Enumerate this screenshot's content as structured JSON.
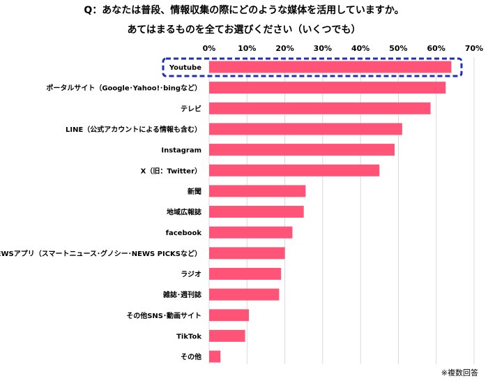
{
  "chart_data": {
    "type": "bar",
    "orientation": "horizontal",
    "title": "Q：あなたは普段、情報収集の際にどのような媒体を活用していますか。",
    "subtitle": "あてはまるものを全てお選びください（いくつでも）",
    "categories": [
      "Youtube",
      "ポータルサイト（Google･Yahoo!･bingなど）",
      "テレビ",
      "LINE（公式アカウントによる情報も含む）",
      "Instagram",
      "X（旧：Twitter）",
      "新聞",
      "地域広報誌",
      "facebook",
      "NEWSアプリ（スマートニュース･グノシー･NEWS PICKSなど）",
      "ラジオ",
      "雑誌･週刊誌",
      "その他SNS･動画サイト",
      "TikTok",
      "その他"
    ],
    "values": [
      64.0,
      62.5,
      58.5,
      51.0,
      49.0,
      45.0,
      25.5,
      25.0,
      22.0,
      20.0,
      19.0,
      18.5,
      10.5,
      9.5,
      3.0
    ],
    "unit": "%",
    "xlim": [
      0,
      70
    ],
    "xticks": [
      "0%",
      "10%",
      "20%",
      "30%",
      "40%",
      "50%",
      "60%",
      "70%"
    ],
    "highlight": "Youtube",
    "bar_color": "#ff5478",
    "highlight_color": "#1f2fb8",
    "grid": true
  },
  "footnote": "※複数回答"
}
